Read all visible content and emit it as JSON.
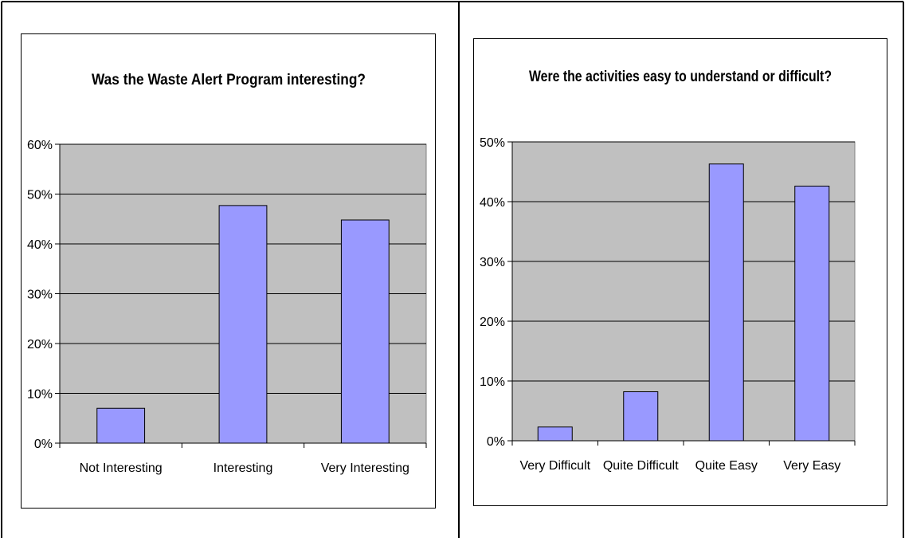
{
  "chart_data": [
    {
      "type": "bar",
      "title": "Was the Waste Alert Program interesting?",
      "categories": [
        "Not Interesting",
        "Interesting",
        "Very Interesting"
      ],
      "values": [
        7,
        47.7,
        44.8
      ],
      "ylim": [
        0,
        60
      ],
      "yticks": [
        "0%",
        "10%",
        "20%",
        "30%",
        "40%",
        "50%",
        "60%"
      ],
      "grid": true,
      "legend": "none",
      "colors": {
        "bar": "#9999ff",
        "plot_bg": "#c0c0c0"
      }
    },
    {
      "type": "bar",
      "title": "Were the activities easy to understand or difficult?",
      "categories": [
        "Very Difficult",
        "Quite Difficult",
        "Quite Easy",
        "Very Easy"
      ],
      "values": [
        2.3,
        8.2,
        46.3,
        42.6
      ],
      "ylim": [
        0,
        50
      ],
      "yticks": [
        "0%",
        "10%",
        "20%",
        "30%",
        "40%",
        "50%"
      ],
      "grid": true,
      "legend": "none",
      "colors": {
        "bar": "#9999ff",
        "plot_bg": "#c0c0c0"
      }
    }
  ]
}
